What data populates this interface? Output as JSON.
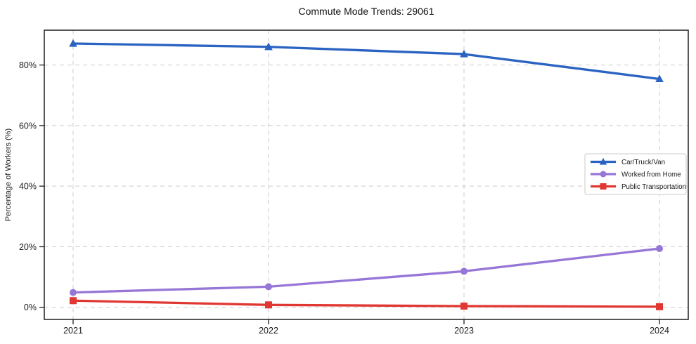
{
  "chart_data": {
    "type": "line",
    "title": "Commute Mode Trends: 29061",
    "xlabel": "",
    "ylabel": "Percentage of Workers (%)",
    "categories": [
      "2021",
      "2022",
      "2023",
      "2024"
    ],
    "series": [
      {
        "name": "Car/Truck/Van",
        "values": [
          87.1,
          86.0,
          83.6,
          75.4
        ],
        "color": "#2a63c2",
        "marker": "triangle"
      },
      {
        "name": "Worked from Home",
        "values": [
          4.9,
          6.8,
          11.9,
          19.4
        ],
        "color": "#9676d7",
        "marker": "circle"
      },
      {
        "name": "Public Transportation",
        "values": [
          2.2,
          0.8,
          0.4,
          0.2
        ],
        "color": "#e13732",
        "marker": "square"
      }
    ],
    "yticks": [
      0,
      20,
      40,
      60,
      80
    ],
    "ytick_labels": [
      "0%",
      "20%",
      "40%",
      "60%",
      "80%"
    ],
    "ylim": [
      -4,
      91.5
    ],
    "grid": "dashed-both-axes",
    "legend_position": "center-right",
    "legend_entries": [
      "Car/Truck/Van",
      "Worked from Home",
      "Public Transportation"
    ]
  },
  "colors": {
    "background": "#ffffff",
    "gridline": "#cdcdcd",
    "spine": "#1f1f1f",
    "tick_text": "#1c1c1c",
    "legend_border": "#c9c9c9",
    "legend_background": "#ffffff",
    "series_blue": "#2a63c2",
    "series_purple": "#9676d7",
    "series_red": "#e13732"
  }
}
